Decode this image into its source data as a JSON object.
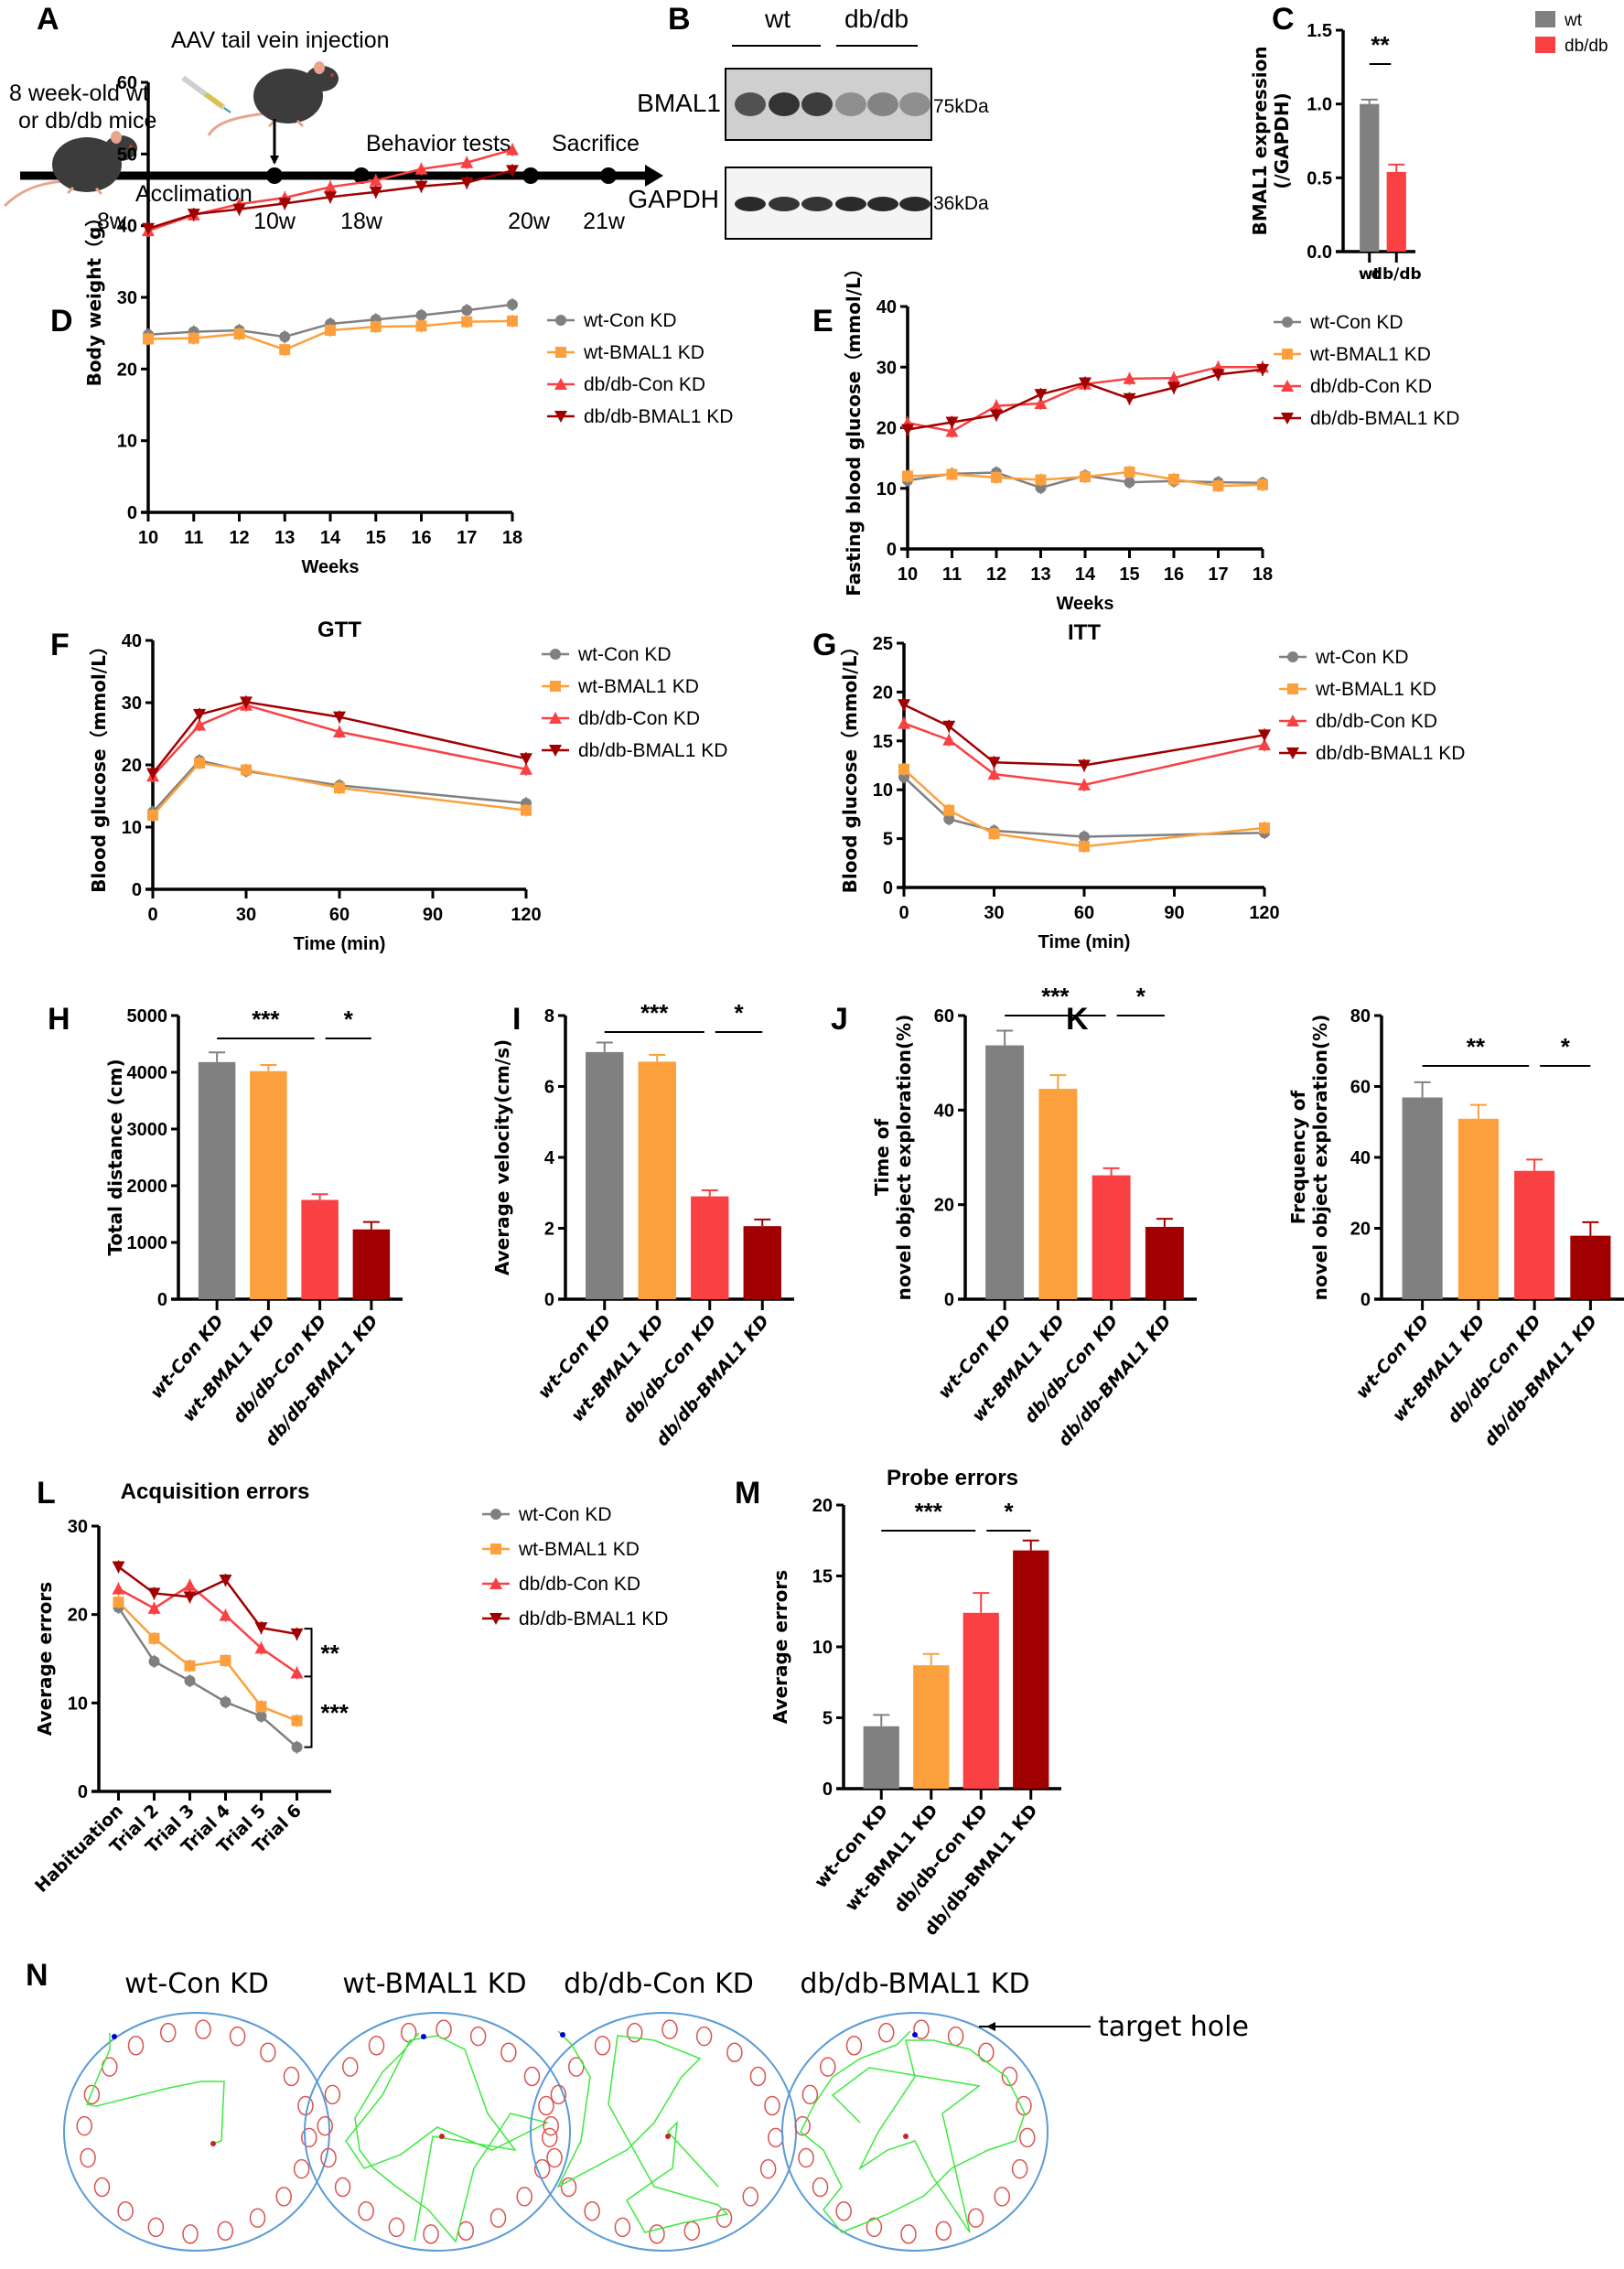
{
  "colors": {
    "wt_con": "#808080",
    "wt_bmal1": "#FBA03D",
    "db_con": "#F94144",
    "db_bmal1": "#A00000",
    "maze_border": "#5B9BD5",
    "maze_hole": "#D9534F",
    "track": "#3EE83E"
  },
  "panels": {
    "A": {
      "letter": "A",
      "injection_label": "AAV tail vein injection",
      "start_label_line1": "8 week-old wt",
      "start_label_line2": "or db/db mice",
      "acclimation_label": "Acclimation",
      "behavior_label": "Behavior tests",
      "sacrifice_label": "Sacrifice",
      "timepoints": [
        "8w",
        "10w",
        "18w",
        "20w",
        "21w"
      ]
    },
    "B": {
      "letter": "B",
      "groups": [
        "wt",
        "db/db"
      ],
      "rows": [
        {
          "protein": "BMAL1",
          "size": "75kDa",
          "intensities": [
            0.75,
            0.9,
            0.85,
            0.45,
            0.5,
            0.45
          ]
        },
        {
          "protein": "GAPDH",
          "size": "36kDa",
          "intensities": [
            0.95,
            0.9,
            0.9,
            0.95,
            0.95,
            0.95
          ]
        }
      ]
    },
    "N": {
      "letter": "N",
      "groups": [
        "wt-Con KD",
        "wt-BMAL1 KD",
        "db/db-Con KD",
        "db/db-BMAL1 KD"
      ],
      "annotation": "target hole"
    }
  },
  "chart_data": [
    {
      "id": "C",
      "letter": "C",
      "type": "bar",
      "title": "",
      "categories": [
        "wt",
        "db/db"
      ],
      "values": [
        1.0,
        0.54
      ],
      "errors": [
        0.03,
        0.05
      ],
      "ylabel_line1": "BMAL1 expression",
      "ylabel_line2": "(/GAPDH)",
      "ylim": [
        0,
        1.5
      ],
      "yticks": [
        "0.0",
        "0.5",
        "1.0",
        "1.5"
      ],
      "legend": [
        "wt",
        "db/db"
      ],
      "legend_position": "top-right",
      "significance": [
        {
          "from": 0,
          "to": 1,
          "label": "**"
        }
      ]
    },
    {
      "id": "D",
      "letter": "D",
      "type": "line",
      "title": "",
      "x": [
        10,
        11,
        12,
        13,
        14,
        15,
        16,
        17,
        18
      ],
      "xlabel": "Weeks",
      "ylabel": "Body weight（g）",
      "xlim": [
        10,
        18
      ],
      "ylim": [
        0,
        60
      ],
      "xticks": [
        "10",
        "11",
        "12",
        "13",
        "14",
        "15",
        "16",
        "17",
        "18"
      ],
      "yticks": [
        "0",
        "10",
        "20",
        "30",
        "40",
        "50",
        "60"
      ],
      "legend_position": "right",
      "series": [
        {
          "name": "wt-Con KD",
          "values": [
            24.8,
            25.2,
            25.4,
            24.5,
            26.3,
            26.9,
            27.5,
            28.2,
            29.0
          ]
        },
        {
          "name": "wt-BMAL1 KD",
          "values": [
            24.2,
            24.3,
            24.9,
            22.7,
            25.4,
            25.9,
            26.0,
            26.6,
            26.7
          ]
        },
        {
          "name": "db/db-Con KD",
          "values": [
            39.3,
            41.5,
            43.0,
            43.9,
            45.4,
            46.3,
            47.9,
            48.8,
            50.6
          ]
        },
        {
          "name": "db/db-BMAL1 KD",
          "values": [
            39.6,
            41.6,
            42.3,
            43.1,
            44.0,
            44.7,
            45.5,
            46.0,
            47.7
          ]
        }
      ]
    },
    {
      "id": "E",
      "letter": "E",
      "type": "line",
      "title": "",
      "x": [
        10,
        11,
        12,
        13,
        14,
        15,
        16,
        17,
        18
      ],
      "xlabel": "Weeks",
      "ylabel": "Fasting blood glucose（mmol/L）",
      "xlim": [
        10,
        18
      ],
      "ylim": [
        0,
        40
      ],
      "xticks": [
        "10",
        "11",
        "12",
        "13",
        "14",
        "15",
        "16",
        "17",
        "18"
      ],
      "yticks": [
        "0",
        "10",
        "20",
        "30",
        "40"
      ],
      "legend_position": "right",
      "series": [
        {
          "name": "wt-Con KD",
          "values": [
            11.3,
            12.4,
            12.6,
            10.1,
            12.1,
            11.0,
            11.2,
            11.0,
            10.9
          ]
        },
        {
          "name": "wt-BMAL1 KD",
          "values": [
            12.0,
            12.3,
            11.8,
            11.4,
            11.9,
            12.7,
            11.5,
            10.4,
            10.6
          ]
        },
        {
          "name": "db/db-Con KD",
          "values": [
            20.8,
            19.4,
            23.6,
            24.0,
            27.2,
            28.1,
            28.2,
            30.0,
            30.0
          ]
        },
        {
          "name": "db/db-BMAL1 KD",
          "values": [
            19.7,
            20.9,
            22.1,
            25.5,
            27.4,
            24.8,
            26.6,
            28.8,
            29.6
          ]
        }
      ]
    },
    {
      "id": "F",
      "letter": "F",
      "type": "line",
      "title": "GTT",
      "x": [
        0,
        15,
        30,
        60,
        120
      ],
      "xlabel": "Time (min)",
      "ylabel": "Blood glucose（mmol/L）",
      "xlim": [
        0,
        120
      ],
      "ylim": [
        0,
        40
      ],
      "xticks": [
        "0",
        "30",
        "60",
        "90",
        "120"
      ],
      "yticks": [
        "0",
        "10",
        "20",
        "30",
        "40"
      ],
      "legend_position": "right",
      "series": [
        {
          "name": "wt-Con KD",
          "values": [
            12.4,
            20.7,
            19.0,
            16.7,
            13.8
          ]
        },
        {
          "name": "wt-BMAL1 KD",
          "values": [
            11.9,
            20.3,
            19.2,
            16.3,
            12.7
          ]
        },
        {
          "name": "db/db-Con KD",
          "values": [
            18.2,
            26.4,
            29.6,
            25.3,
            19.3
          ]
        },
        {
          "name": "db/db-BMAL1 KD",
          "values": [
            18.6,
            28.1,
            30.1,
            27.7,
            21.0
          ]
        }
      ]
    },
    {
      "id": "G",
      "letter": "G",
      "type": "line",
      "title": "ITT",
      "x": [
        0,
        15,
        30,
        60,
        120
      ],
      "xlabel": "Time (min)",
      "ylabel": "Blood glucose（mmol/L）",
      "xlim": [
        0,
        120
      ],
      "ylim": [
        0,
        25
      ],
      "xticks": [
        "0",
        "30",
        "60",
        "90",
        "120"
      ],
      "yticks": [
        "0",
        "5",
        "10",
        "15",
        "20",
        "25"
      ],
      "legend_position": "right",
      "series": [
        {
          "name": "wt-Con KD",
          "values": [
            11.3,
            7.0,
            5.8,
            5.2,
            5.6
          ]
        },
        {
          "name": "wt-BMAL1 KD",
          "values": [
            12.1,
            7.9,
            5.5,
            4.2,
            6.1
          ]
        },
        {
          "name": "db/db-Con KD",
          "values": [
            16.8,
            15.1,
            11.6,
            10.5,
            14.6
          ]
        },
        {
          "name": "db/db-BMAL1 KD",
          "values": [
            18.7,
            16.5,
            12.8,
            12.5,
            15.6
          ]
        }
      ]
    },
    {
      "id": "H",
      "letter": "H",
      "type": "bar",
      "title": "",
      "categories": [
        "wt-Con KD",
        "wt-BMAL1 KD",
        "db/db-Con KD",
        "db/db-BMAL1 KD"
      ],
      "values": [
        4180,
        4020,
        1750,
        1230
      ],
      "errors": [
        170,
        110,
        100,
        130
      ],
      "ylabel": "Total distance (cm)",
      "ylim": [
        0,
        5000
      ],
      "yticks": [
        "0",
        "1000",
        "2000",
        "3000",
        "4000",
        "5000"
      ],
      "significance": [
        {
          "from": 0,
          "to": 2,
          "label": "***"
        },
        {
          "from": 2,
          "to": 3,
          "label": "*"
        }
      ]
    },
    {
      "id": "I",
      "letter": "I",
      "type": "bar",
      "title": "",
      "categories": [
        "wt-Con KD",
        "wt-BMAL1 KD",
        "db/db-Con KD",
        "db/db-BMAL1 KD"
      ],
      "values": [
        6.97,
        6.7,
        2.9,
        2.06
      ],
      "errors": [
        0.27,
        0.19,
        0.17,
        0.19
      ],
      "ylabel": "Average velocity(cm/s)",
      "ylim": [
        0,
        8
      ],
      "yticks": [
        "0",
        "2",
        "4",
        "6",
        "8"
      ],
      "significance": [
        {
          "from": 0,
          "to": 2,
          "label": "***"
        },
        {
          "from": 2,
          "to": 3,
          "label": "*"
        }
      ]
    },
    {
      "id": "J",
      "letter": "J",
      "type": "bar",
      "title": "",
      "categories": [
        "wt-Con KD",
        "wt-BMAL1 KD",
        "db/db-Con KD",
        "db/db-BMAL1 KD"
      ],
      "values": [
        53.7,
        44.5,
        26.2,
        15.3
      ],
      "errors": [
        3.1,
        2.9,
        1.5,
        1.7
      ],
      "ylabel_line1": "Time of",
      "ylabel_line2": "novel object exploration(%)",
      "ylim": [
        0,
        60
      ],
      "yticks": [
        "0",
        "20",
        "40",
        "60"
      ],
      "significance": [
        {
          "from": 0,
          "to": 2,
          "label": "***"
        },
        {
          "from": 2,
          "to": 3,
          "label": "*"
        }
      ]
    },
    {
      "id": "K",
      "letter": "K",
      "type": "bar",
      "title": "",
      "categories": [
        "wt-Con KD",
        "wt-BMAL1 KD",
        "db/db-Con KD",
        "db/db-BMAL1 KD"
      ],
      "values": [
        56.9,
        50.9,
        36.2,
        17.9
      ],
      "errors": [
        4.3,
        3.9,
        3.2,
        3.8
      ],
      "ylabel_line1": "Frequency of",
      "ylabel_line2": "novel object exploration(%)",
      "ylim": [
        0,
        80
      ],
      "yticks": [
        "0",
        "20",
        "40",
        "60",
        "80"
      ],
      "significance": [
        {
          "from": 0,
          "to": 2,
          "label": "**"
        },
        {
          "from": 2,
          "to": 3,
          "label": "*"
        }
      ]
    },
    {
      "id": "L",
      "letter": "L",
      "type": "line",
      "title": "Acquisition errors",
      "categories": [
        "Habituation",
        "Trial 2",
        "Trial 3",
        "Trial 4",
        "Trial 5",
        "Trial 6"
      ],
      "xlabel": "",
      "ylabel": "Average errors",
      "ylim": [
        0,
        30
      ],
      "yticks": [
        "0",
        "10",
        "20",
        "30"
      ],
      "legend_position": "right",
      "series": [
        {
          "name": "wt-Con KD",
          "values": [
            20.8,
            14.7,
            12.5,
            10.1,
            8.5,
            5.0
          ]
        },
        {
          "name": "wt-BMAL1 KD",
          "values": [
            21.4,
            17.3,
            14.2,
            14.8,
            9.6,
            8.0
          ]
        },
        {
          "name": "db/db-Con KD",
          "values": [
            22.9,
            20.7,
            23.3,
            19.9,
            16.2,
            13.4
          ]
        },
        {
          "name": "db/db-BMAL1 KD",
          "values": [
            25.4,
            22.4,
            22.0,
            23.9,
            18.5,
            17.8
          ]
        }
      ],
      "significance": [
        {
          "label": "**"
        },
        {
          "label": "***"
        }
      ]
    },
    {
      "id": "M",
      "letter": "M",
      "type": "bar",
      "title": "Probe errors",
      "categories": [
        "wt-Con KD",
        "wt-BMAL1 KD",
        "db/db-Con KD",
        "db/db-BMAL1 KD"
      ],
      "values": [
        4.4,
        8.7,
        12.4,
        16.8
      ],
      "errors": [
        0.8,
        0.8,
        1.4,
        0.7
      ],
      "ylabel": "Average errors",
      "ylim": [
        0,
        20
      ],
      "yticks": [
        "0",
        "5",
        "10",
        "15",
        "20"
      ],
      "significance": [
        {
          "from": 0,
          "to": 2,
          "label": "***"
        },
        {
          "from": 2,
          "to": 3,
          "label": "*"
        }
      ]
    }
  ]
}
